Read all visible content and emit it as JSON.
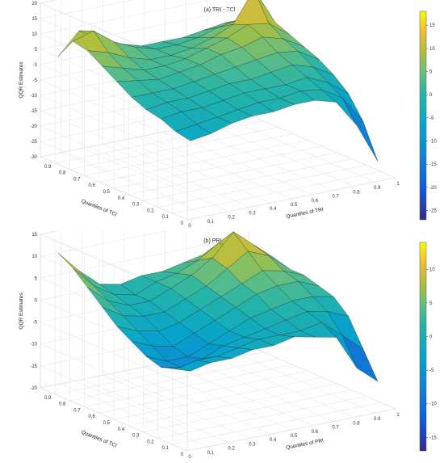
{
  "chart_data": [
    {
      "type": "surface",
      "title": "(a) TRI - TCI",
      "xlabel": "Quantiles of TRI",
      "ylabel": "Quantiles of TCI",
      "zlabel": "QQR Estimates",
      "x_ticks": [
        "0",
        "0.1",
        "0.2",
        "0.3",
        "0.4",
        "0.5",
        "0.6",
        "0.7",
        "0.8",
        "0.9",
        "1"
      ],
      "y_ticks": [
        "0",
        "0.1",
        "0.2",
        "0.3",
        "0.4",
        "0.5",
        "0.6",
        "0.7",
        "0.8",
        "0.9"
      ],
      "z_ticks": [
        "-30",
        "-25",
        "-20",
        "-15",
        "-10",
        "-5",
        "0",
        "5",
        "10",
        "15",
        "20"
      ],
      "zlim": [
        -30,
        20
      ],
      "colorbar_ticks": [
        "-25",
        "-20",
        "-15",
        "-10",
        "-5",
        "0",
        "5",
        "10",
        "15"
      ],
      "colorbar_range": [
        -27,
        18
      ],
      "colormap": "parula",
      "x": [
        0.05,
        0.15,
        0.25,
        0.35,
        0.45,
        0.55,
        0.65,
        0.75,
        0.85,
        0.95
      ],
      "y": [
        0.05,
        0.15,
        0.25,
        0.35,
        0.45,
        0.55,
        0.65,
        0.75,
        0.85,
        0.95
      ],
      "z": [
        [
          -6,
          -5,
          -3,
          -2,
          -2,
          -1,
          -1,
          -3,
          -12,
          -25
        ],
        [
          -5,
          -4,
          -3,
          -2,
          -1,
          -1,
          0,
          -1,
          -5,
          -14
        ],
        [
          -3,
          -2,
          -2,
          -1,
          0,
          0,
          0,
          1,
          -2,
          -7
        ],
        [
          -2,
          -1,
          -1,
          0,
          1,
          1,
          2,
          3,
          1,
          -3
        ],
        [
          0,
          0,
          0,
          1,
          2,
          3,
          4,
          5,
          4,
          0
        ],
        [
          3,
          2,
          1,
          2,
          3,
          5,
          6,
          8,
          6,
          2
        ],
        [
          6,
          4,
          2,
          2,
          3,
          5,
          7,
          10,
          9,
          4
        ],
        [
          9,
          7,
          4,
          2,
          2,
          3,
          5,
          8,
          18,
          6
        ],
        [
          10,
          12,
          7,
          4,
          2,
          2,
          3,
          5,
          6,
          3
        ],
        [
          3,
          10,
          6,
          3,
          1,
          1,
          1,
          2,
          3,
          2
        ]
      ]
    },
    {
      "type": "surface",
      "title": "(b) PRI - TCI",
      "xlabel": "Quantiles of PRI",
      "ylabel": "Quantiles of TCI",
      "zlabel": "QQR Estimates",
      "x_ticks": [
        "0",
        "0.1",
        "0.2",
        "0.3",
        "0.4",
        "0.5",
        "0.6",
        "0.7",
        "0.8",
        "0.9",
        "1"
      ],
      "y_ticks": [
        "0",
        "0.1",
        "0.2",
        "0.3",
        "0.4",
        "0.5",
        "0.6",
        "0.7",
        "0.8",
        "0.9"
      ],
      "z_ticks": [
        "-20",
        "-15",
        "-10",
        "-5",
        "0",
        "5",
        "10",
        "15"
      ],
      "zlim": [
        -20,
        15
      ],
      "colorbar_ticks": [
        "-15",
        "-10",
        "-5",
        "0",
        "5",
        "10"
      ],
      "colorbar_range": [
        -17,
        14
      ],
      "colormap": "parula",
      "x": [
        0.05,
        0.15,
        0.25,
        0.35,
        0.45,
        0.55,
        0.65,
        0.75,
        0.85,
        0.95
      ],
      "y": [
        0.05,
        0.15,
        0.25,
        0.35,
        0.45,
        0.55,
        0.65,
        0.75,
        0.85,
        0.95
      ],
      "z": [
        [
          -3,
          -2,
          -2,
          -1,
          -1,
          0,
          -1,
          -2,
          -10,
          -14
        ],
        [
          -4,
          -3,
          -3,
          -2,
          -1,
          -1,
          -1,
          0,
          -4,
          -8
        ],
        [
          -5,
          -6,
          -5,
          -3,
          -2,
          -1,
          0,
          1,
          0,
          -2
        ],
        [
          -4,
          -6,
          -6,
          -4,
          -2,
          0,
          1,
          2,
          2,
          1
        ],
        [
          -2,
          -4,
          -5,
          -3,
          -1,
          1,
          3,
          4,
          4,
          2
        ],
        [
          0,
          -2,
          -3,
          -2,
          0,
          2,
          4,
          6,
          5,
          3
        ],
        [
          3,
          0,
          -1,
          -1,
          1,
          3,
          6,
          9,
          7,
          3
        ],
        [
          6,
          2,
          0,
          0,
          2,
          4,
          7,
          12,
          8,
          4
        ],
        [
          9,
          4,
          1,
          0,
          2,
          3,
          5,
          8,
          6,
          3
        ],
        [
          11,
          6,
          2,
          1,
          2,
          2,
          3,
          4,
          3,
          2
        ]
      ]
    }
  ]
}
